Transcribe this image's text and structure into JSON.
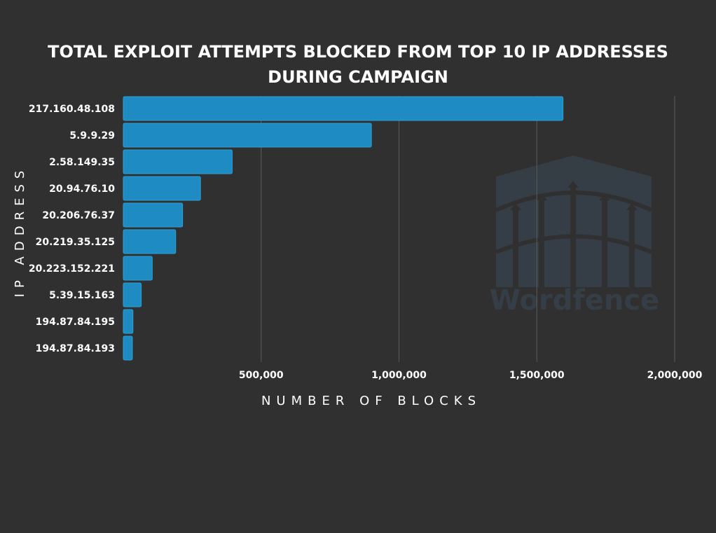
{
  "chart_data": {
    "type": "bar",
    "orientation": "horizontal",
    "title_lines": [
      "TOTAL EXPLOIT ATTEMPTS BLOCKED FROM TOP 10 IP ADDRESSES",
      "DURING CAMPAIGN"
    ],
    "categories": [
      "217.160.48.108",
      "5.9.9.29",
      "2.58.149.35",
      "20.94.76.10",
      "20.206.76.37",
      "20.219.35.125",
      "20.223.152.221",
      "5.39.15.163",
      "194.87.84.195",
      "194.87.84.193"
    ],
    "values": [
      1595000,
      900000,
      395000,
      280000,
      215000,
      190000,
      105000,
      65000,
      35000,
      33000
    ],
    "xlabel": "NUMBER OF BLOCKS",
    "ylabel": "IP ADDRESS",
    "xlim": [
      0,
      2000000
    ],
    "xticks": [
      500000,
      1000000,
      1500000,
      2000000
    ],
    "xtick_labels": [
      "500,000",
      "1,000,000",
      "1,500,000",
      "2,000,000"
    ],
    "grid": true,
    "bar_color": "#1e8bc3",
    "watermark": "Wordfence"
  }
}
